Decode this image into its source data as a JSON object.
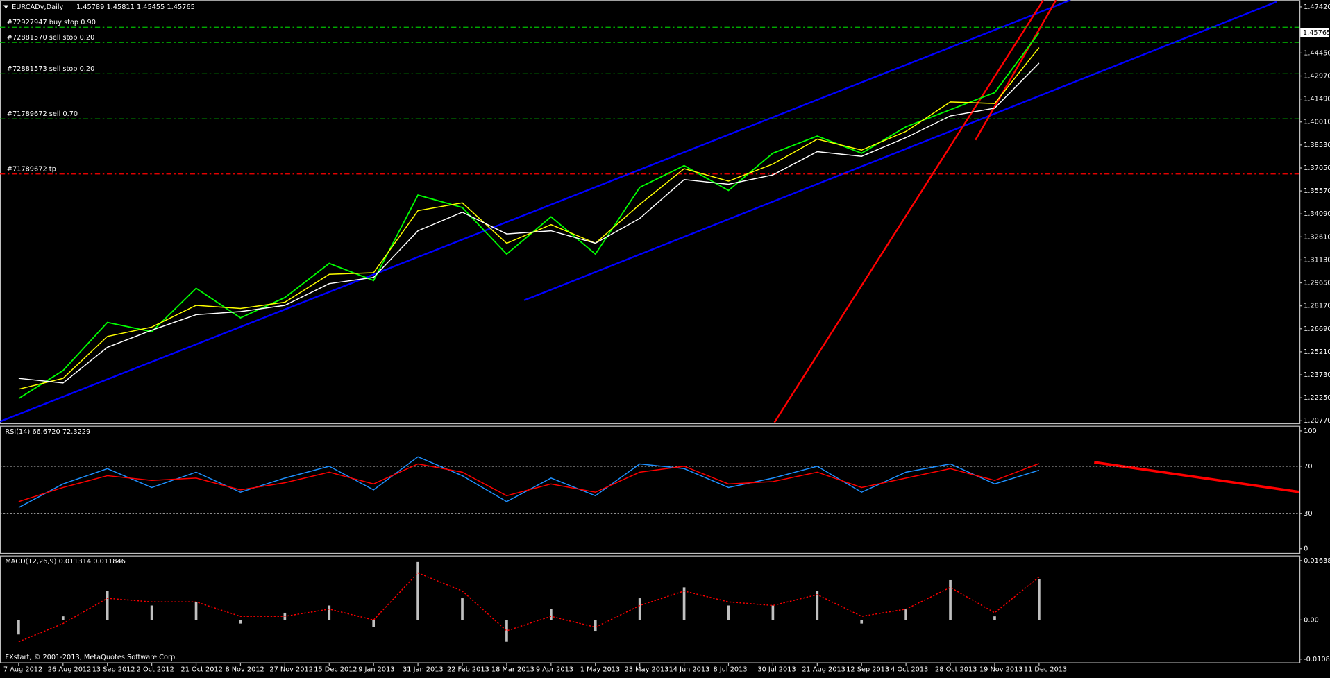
{
  "chart_data": [
    {
      "type": "line",
      "title": "EURCADv,Daily",
      "header_values": "1.45789 1.45811 1.45455 1.45765",
      "categories": [
        "7 Aug 2012",
        "26 Aug 2012",
        "13 Sep 2012",
        "2 Oct 2012",
        "21 Oct 2012",
        "8 Nov 2012",
        "27 Nov 2012",
        "15 Dec 2012",
        "9 Jan 2013",
        "31 Jan 2013",
        "22 Feb 2013",
        "18 Mar 2013",
        "9 Apr 2013",
        "1 May 2013",
        "23 May 2013",
        "14 Jun 2013",
        "8 Jul 2013",
        "30 Jul 2013",
        "21 Aug 2013",
        "12 Sep 2013",
        "4 Oct 2013",
        "28 Oct 2013",
        "19 Nov 2013",
        "11 Dec 2013"
      ],
      "series": [
        {
          "color": "#00ff00",
          "values": [
            1.222,
            1.24,
            1.271,
            1.265,
            1.293,
            1.274,
            1.287,
            1.309,
            1.298,
            1.353,
            1.345,
            1.315,
            1.339,
            1.315,
            1.358,
            1.372,
            1.356,
            1.38,
            1.391,
            1.38,
            1.397,
            1.408,
            1.419,
            1.45765
          ]
        },
        {
          "color": "#ffff00",
          "values": [
            1.228,
            1.235,
            1.262,
            1.268,
            1.282,
            1.28,
            1.284,
            1.302,
            1.303,
            1.343,
            1.348,
            1.322,
            1.334,
            1.322,
            1.347,
            1.37,
            1.362,
            1.373,
            1.389,
            1.382,
            1.394,
            1.413,
            1.412,
            1.448
          ]
        },
        {
          "color": "#ffffff",
          "values": [
            1.235,
            1.232,
            1.255,
            1.266,
            1.276,
            1.278,
            1.282,
            1.296,
            1.3,
            1.33,
            1.342,
            1.328,
            1.33,
            1.322,
            1.338,
            1.363,
            1.36,
            1.366,
            1.381,
            1.378,
            1.39,
            1.404,
            1.409,
            1.438
          ]
        }
      ],
      "ylim": [
        1.20552,
        1.47857
      ],
      "yticks": [
        {
          "value": 1.4742,
          "label": "1.47420"
        },
        {
          "value": 1.4445,
          "label": "1.44450"
        },
        {
          "value": 1.4297,
          "label": "1.42970"
        },
        {
          "value": 1.4149,
          "label": "1.41490"
        },
        {
          "value": 1.4001,
          "label": "1.40010"
        },
        {
          "value": 1.3853,
          "label": "1.38530"
        },
        {
          "value": 1.3705,
          "label": "1.37050"
        },
        {
          "value": 1.3557,
          "label": "1.35570"
        },
        {
          "value": 1.3409,
          "label": "1.34090"
        },
        {
          "value": 1.3261,
          "label": "1.32610"
        },
        {
          "value": 1.3113,
          "label": "1.31130"
        },
        {
          "value": 1.2965,
          "label": "1.29650"
        },
        {
          "value": 1.2817,
          "label": "1.28170"
        },
        {
          "value": 1.2669,
          "label": "1.26690"
        },
        {
          "value": 1.2521,
          "label": "1.25210"
        },
        {
          "value": 1.2373,
          "label": "1.23730"
        },
        {
          "value": 1.2225,
          "label": "1.22250"
        },
        {
          "value": 1.2077,
          "label": "1.20770"
        }
      ],
      "last_price": {
        "value": 1.45765,
        "label": "1.45765"
      },
      "levels": [
        {
          "label": "#72927947 buy stop 0.90",
          "value": 1.4611,
          "color": "#00c000"
        },
        {
          "label": "#72881570 sell stop 0.20",
          "value": 1.4513,
          "color": "#00c000"
        },
        {
          "label": "#72881573 sell stop 0.20",
          "value": 1.4311,
          "color": "#00c000"
        },
        {
          "label": "#71789672 sell 0.70",
          "value": 1.4021,
          "color": "#00c000"
        },
        {
          "label": "#71789672 tp",
          "value": 1.3666,
          "color": "#ff0000"
        }
      ]
    },
    {
      "type": "line",
      "title": "RSI(14) 66.6720 72.3229",
      "series": [
        {
          "color": "#1e90ff",
          "values": [
            35,
            55,
            68,
            52,
            65,
            48,
            60,
            70,
            50,
            78,
            62,
            40,
            60,
            45,
            72,
            68,
            52,
            60,
            70,
            48,
            65,
            72,
            55,
            66.672
          ]
        },
        {
          "color": "#ff0000",
          "values": [
            40,
            52,
            62,
            58,
            60,
            50,
            56,
            65,
            55,
            72,
            65,
            45,
            55,
            48,
            65,
            70,
            55,
            57,
            65,
            52,
            60,
            68,
            58,
            72.3229
          ]
        }
      ],
      "ylim": [
        -3.6,
        103.6
      ],
      "yticks": [
        0,
        30,
        70,
        100
      ],
      "levels": [
        30,
        70
      ]
    },
    {
      "type": "macd",
      "title": "MACD(12,26,9) 0.011314 0.011846",
      "series": [
        {
          "color": "#c0c0c0",
          "values": [
            -0.004,
            0.001,
            0.008,
            0.004,
            0.005,
            -0.001,
            0.002,
            0.004,
            -0.002,
            0.016,
            0.006,
            -0.006,
            0.003,
            -0.003,
            0.006,
            0.009,
            0.004,
            0.004,
            0.008,
            -0.001,
            0.003,
            0.011,
            0.001,
            0.011314
          ]
        },
        {
          "color": "#ff0000",
          "values": [
            -0.006,
            -0.001,
            0.006,
            0.005,
            0.005,
            0.001,
            0.001,
            0.003,
            0.0,
            0.013,
            0.008,
            -0.003,
            0.001,
            -0.002,
            0.004,
            0.008,
            0.005,
            0.004,
            0.007,
            0.001,
            0.003,
            0.009,
            0.002,
            0.011846
          ]
        }
      ],
      "ylim": [
        -0.01194,
        0.01755
      ],
      "yticks": [
        0.016382,
        {
          "value": 0,
          "label": "0.00"
        },
        -0.010803
      ]
    }
  ],
  "copyright": "FXstart, © 2001-2013, MetaQuotes Software Corp."
}
